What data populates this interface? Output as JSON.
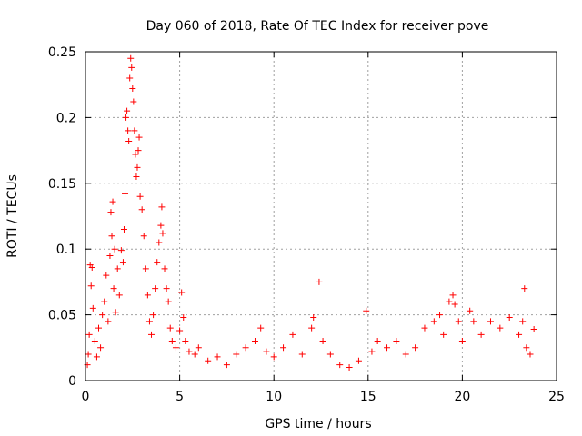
{
  "chart_data": {
    "type": "scatter",
    "title": "Day 060 of 2018, Rate Of TEC Index for receiver pove",
    "xlabel": "GPS time / hours",
    "ylabel": "ROTI / TECUs",
    "xlim": [
      0,
      25
    ],
    "ylim": [
      0,
      0.25
    ],
    "xticks": [
      0,
      5,
      10,
      15,
      20,
      25
    ],
    "yticks": [
      0,
      0.05,
      0.1,
      0.15,
      0.2,
      0.25
    ],
    "xtick_labels": [
      "0",
      "5",
      "10",
      "15",
      "20",
      "25"
    ],
    "ytick_labels": [
      "0",
      "0.05",
      "0.1",
      "0.15",
      "0.2",
      "0.25"
    ],
    "grid": true,
    "marker": "+",
    "color": "#ff0000",
    "points": [
      [
        0.1,
        0.012
      ],
      [
        0.15,
        0.02
      ],
      [
        0.2,
        0.035
      ],
      [
        0.25,
        0.088
      ],
      [
        0.3,
        0.072
      ],
      [
        0.35,
        0.086
      ],
      [
        0.4,
        0.055
      ],
      [
        0.5,
        0.03
      ],
      [
        0.6,
        0.018
      ],
      [
        0.7,
        0.04
      ],
      [
        0.8,
        0.025
      ],
      [
        0.9,
        0.05
      ],
      [
        1.0,
        0.06
      ],
      [
        1.1,
        0.08
      ],
      [
        1.2,
        0.045
      ],
      [
        1.3,
        0.095
      ],
      [
        1.35,
        0.128
      ],
      [
        1.4,
        0.11
      ],
      [
        1.45,
        0.136
      ],
      [
        1.5,
        0.07
      ],
      [
        1.55,
        0.1
      ],
      [
        1.6,
        0.052
      ],
      [
        1.7,
        0.085
      ],
      [
        1.8,
        0.065
      ],
      [
        1.9,
        0.099
      ],
      [
        2.0,
        0.09
      ],
      [
        2.05,
        0.115
      ],
      [
        2.1,
        0.142
      ],
      [
        2.15,
        0.2
      ],
      [
        2.2,
        0.205
      ],
      [
        2.25,
        0.19
      ],
      [
        2.3,
        0.182
      ],
      [
        2.35,
        0.23
      ],
      [
        2.4,
        0.245
      ],
      [
        2.45,
        0.238
      ],
      [
        2.5,
        0.222
      ],
      [
        2.55,
        0.212
      ],
      [
        2.6,
        0.19
      ],
      [
        2.65,
        0.172
      ],
      [
        2.7,
        0.155
      ],
      [
        2.75,
        0.162
      ],
      [
        2.8,
        0.175
      ],
      [
        2.85,
        0.185
      ],
      [
        2.9,
        0.14
      ],
      [
        3.0,
        0.13
      ],
      [
        3.1,
        0.11
      ],
      [
        3.2,
        0.085
      ],
      [
        3.3,
        0.065
      ],
      [
        3.4,
        0.045
      ],
      [
        3.5,
        0.035
      ],
      [
        3.6,
        0.05
      ],
      [
        3.7,
        0.07
      ],
      [
        3.8,
        0.09
      ],
      [
        3.9,
        0.105
      ],
      [
        4.0,
        0.118
      ],
      [
        4.05,
        0.132
      ],
      [
        4.1,
        0.112
      ],
      [
        4.2,
        0.085
      ],
      [
        4.3,
        0.07
      ],
      [
        4.4,
        0.06
      ],
      [
        4.5,
        0.04
      ],
      [
        4.6,
        0.03
      ],
      [
        4.8,
        0.025
      ],
      [
        5.0,
        0.038
      ],
      [
        5.1,
        0.067
      ],
      [
        5.2,
        0.048
      ],
      [
        5.3,
        0.03
      ],
      [
        5.5,
        0.022
      ],
      [
        5.8,
        0.02
      ],
      [
        6.0,
        0.025
      ],
      [
        6.5,
        0.015
      ],
      [
        7.0,
        0.018
      ],
      [
        7.5,
        0.012
      ],
      [
        8.0,
        0.02
      ],
      [
        8.5,
        0.025
      ],
      [
        9.0,
        0.03
      ],
      [
        9.3,
        0.04
      ],
      [
        9.6,
        0.022
      ],
      [
        10.0,
        0.018
      ],
      [
        10.5,
        0.025
      ],
      [
        11.0,
        0.035
      ],
      [
        11.5,
        0.02
      ],
      [
        12.0,
        0.04
      ],
      [
        12.1,
        0.048
      ],
      [
        12.4,
        0.075
      ],
      [
        12.6,
        0.03
      ],
      [
        13.0,
        0.02
      ],
      [
        13.5,
        0.012
      ],
      [
        14.0,
        0.01
      ],
      [
        14.5,
        0.015
      ],
      [
        14.9,
        0.053
      ],
      [
        15.2,
        0.022
      ],
      [
        15.5,
        0.03
      ],
      [
        16.0,
        0.025
      ],
      [
        16.5,
        0.03
      ],
      [
        17.0,
        0.02
      ],
      [
        17.5,
        0.025
      ],
      [
        18.0,
        0.04
      ],
      [
        18.5,
        0.045
      ],
      [
        18.8,
        0.05
      ],
      [
        19.0,
        0.035
      ],
      [
        19.3,
        0.06
      ],
      [
        19.5,
        0.065
      ],
      [
        19.6,
        0.058
      ],
      [
        19.8,
        0.045
      ],
      [
        20.0,
        0.03
      ],
      [
        20.4,
        0.053
      ],
      [
        20.6,
        0.045
      ],
      [
        21.0,
        0.035
      ],
      [
        21.5,
        0.045
      ],
      [
        22.0,
        0.04
      ],
      [
        22.5,
        0.048
      ],
      [
        23.0,
        0.035
      ],
      [
        23.2,
        0.045
      ],
      [
        23.3,
        0.07
      ],
      [
        23.4,
        0.025
      ],
      [
        23.6,
        0.02
      ],
      [
        23.8,
        0.039
      ]
    ]
  }
}
